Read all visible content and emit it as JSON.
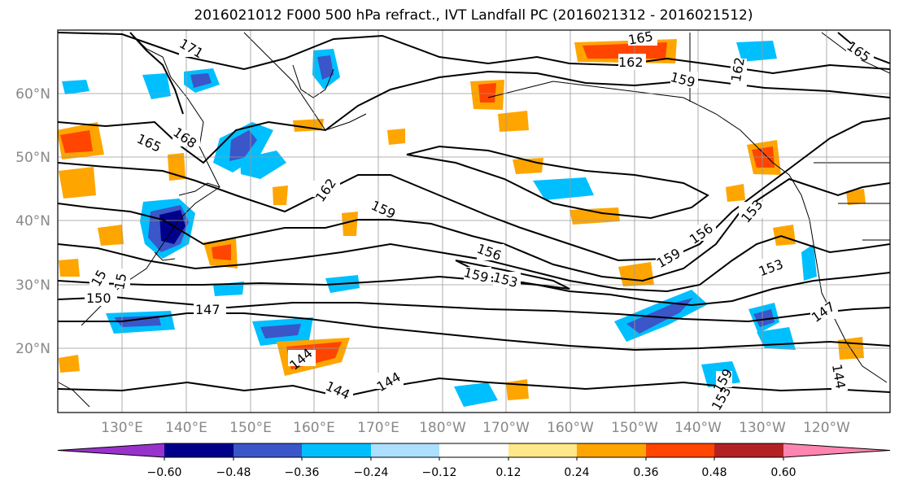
{
  "title": "2016021012 F000 500 hPa refract., IVT Landfall PC (2016021312 - 2016021512)",
  "lat_labels": [
    "60°N",
    "50°N",
    "40°N",
    "30°N",
    "20°N"
  ],
  "lon_labels": [
    "130°E",
    "140°E",
    "150°E",
    "160°E",
    "170°E",
    "180°W",
    "170°W",
    "160°W",
    "150°W",
    "140°W",
    "130°W",
    "120°W"
  ],
  "colorbar": {
    "colors": [
      "#9932CC",
      "#00008B",
      "#3A56C8",
      "#00BFFF",
      "#ADDFFF",
      "#FFFFFF",
      "#FFE88A",
      "#FFA500",
      "#FF4500",
      "#B22222",
      "#FF85B0"
    ],
    "tick_labels": [
      "−0.60",
      "−0.48",
      "−0.36",
      "−0.24",
      "−0.12",
      "0.12",
      "0.24",
      "0.36",
      "0.48",
      "0.60"
    ]
  },
  "contour_labels": [
    "171",
    "165",
    "168",
    "165",
    "162",
    "159",
    "162",
    "159",
    "156",
    "159",
    "153",
    "156",
    "153",
    "159",
    "153",
    "150",
    "147",
    "147",
    "144",
    "144",
    "144",
    "144",
    "153",
    "159",
    "162",
    "165",
    "15",
    "15"
  ]
}
